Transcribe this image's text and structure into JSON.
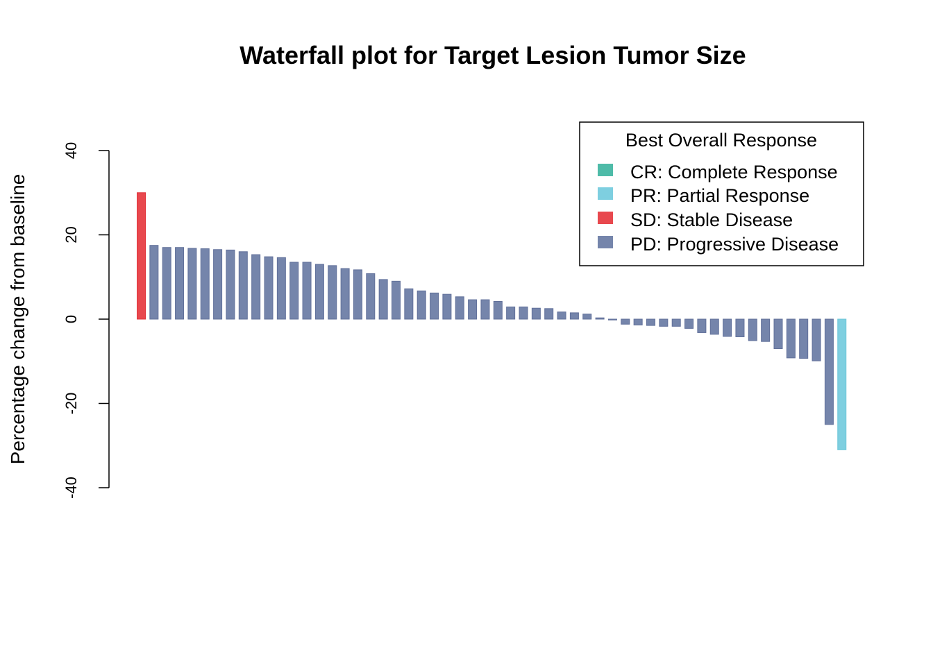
{
  "chart_data": {
    "type": "bar",
    "title": "Waterfall plot for Target Lesion Tumor Size",
    "xlabel": "",
    "ylabel": "Percentage change from baseline",
    "ylim": [
      -40,
      40
    ],
    "yticks": [
      -40,
      -20,
      0,
      20,
      40
    ],
    "grid": false,
    "legend": {
      "title": "Best Overall Response",
      "placement": "top-right",
      "entries": [
        {
          "code": "CR",
          "label": "CR: Complete Response",
          "color": "#4EBBA8"
        },
        {
          "code": "PR",
          "label": "PR: Partial Response",
          "color": "#7ECFE0"
        },
        {
          "code": "SD",
          "label": "SD: Stable Disease",
          "color": "#E8484E"
        },
        {
          "code": "PD",
          "label": "PD: Progressive Disease",
          "color": "#7585AB"
        }
      ]
    },
    "bars": [
      {
        "value": 30.0,
        "response": "SD"
      },
      {
        "value": 17.5,
        "response": "PD"
      },
      {
        "value": 17.0,
        "response": "PD"
      },
      {
        "value": 17.0,
        "response": "PD"
      },
      {
        "value": 16.8,
        "response": "PD"
      },
      {
        "value": 16.7,
        "response": "PD"
      },
      {
        "value": 16.5,
        "response": "PD"
      },
      {
        "value": 16.4,
        "response": "PD"
      },
      {
        "value": 16.0,
        "response": "PD"
      },
      {
        "value": 15.3,
        "response": "PD"
      },
      {
        "value": 14.8,
        "response": "PD"
      },
      {
        "value": 14.6,
        "response": "PD"
      },
      {
        "value": 13.5,
        "response": "PD"
      },
      {
        "value": 13.5,
        "response": "PD"
      },
      {
        "value": 13.0,
        "response": "PD"
      },
      {
        "value": 12.7,
        "response": "PD"
      },
      {
        "value": 12.0,
        "response": "PD"
      },
      {
        "value": 11.7,
        "response": "PD"
      },
      {
        "value": 10.8,
        "response": "PD"
      },
      {
        "value": 9.4,
        "response": "PD"
      },
      {
        "value": 9.0,
        "response": "PD"
      },
      {
        "value": 7.2,
        "response": "PD"
      },
      {
        "value": 6.7,
        "response": "PD"
      },
      {
        "value": 6.2,
        "response": "PD"
      },
      {
        "value": 5.9,
        "response": "PD"
      },
      {
        "value": 5.3,
        "response": "PD"
      },
      {
        "value": 4.6,
        "response": "PD"
      },
      {
        "value": 4.6,
        "response": "PD"
      },
      {
        "value": 4.2,
        "response": "PD"
      },
      {
        "value": 2.9,
        "response": "PD"
      },
      {
        "value": 2.9,
        "response": "PD"
      },
      {
        "value": 2.6,
        "response": "PD"
      },
      {
        "value": 2.5,
        "response": "PD"
      },
      {
        "value": 1.7,
        "response": "PD"
      },
      {
        "value": 1.5,
        "response": "PD"
      },
      {
        "value": 1.2,
        "response": "PD"
      },
      {
        "value": 0.3,
        "response": "PD"
      },
      {
        "value": -0.2,
        "response": "PD"
      },
      {
        "value": -1.2,
        "response": "PD"
      },
      {
        "value": -1.4,
        "response": "PD"
      },
      {
        "value": -1.5,
        "response": "PD"
      },
      {
        "value": -1.7,
        "response": "PD"
      },
      {
        "value": -1.7,
        "response": "PD"
      },
      {
        "value": -2.2,
        "response": "PD"
      },
      {
        "value": -3.2,
        "response": "PD"
      },
      {
        "value": -3.6,
        "response": "PD"
      },
      {
        "value": -4.1,
        "response": "PD"
      },
      {
        "value": -4.2,
        "response": "PD"
      },
      {
        "value": -5.1,
        "response": "PD"
      },
      {
        "value": -5.3,
        "response": "PD"
      },
      {
        "value": -7.0,
        "response": "PD"
      },
      {
        "value": -9.2,
        "response": "PD"
      },
      {
        "value": -9.3,
        "response": "PD"
      },
      {
        "value": -9.9,
        "response": "PD"
      },
      {
        "value": -25.0,
        "response": "PD"
      },
      {
        "value": -31.0,
        "response": "PR"
      }
    ]
  }
}
